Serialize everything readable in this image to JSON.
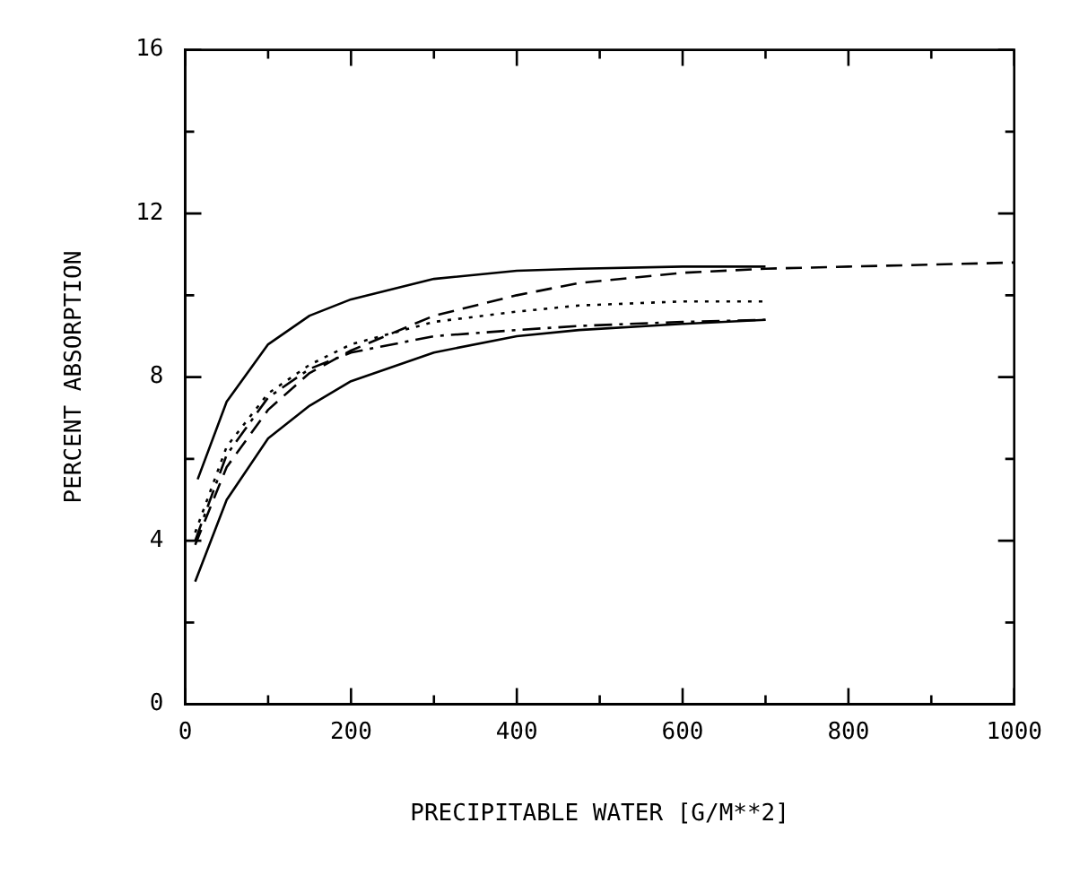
{
  "chart_data": {
    "type": "line",
    "xlabel": "PRECIPITABLE WATER [G/M**2]",
    "ylabel": "PERCENT ABSORPTION",
    "xlim": [
      0,
      1000
    ],
    "ylim": [
      0,
      16
    ],
    "xticks": [
      0,
      {
        "value": 100,
        "label": null
      },
      200,
      {
        "value": 300,
        "label": null
      },
      400,
      {
        "value": 500,
        "label": null
      },
      600,
      {
        "value": 700,
        "label": null
      },
      800,
      {
        "value": 900,
        "label": null
      },
      1000
    ],
    "yticks": [
      0,
      {
        "value": 2,
        "label": null
      },
      4,
      {
        "value": 6,
        "label": null
      },
      8,
      {
        "value": 10,
        "label": null
      },
      12,
      {
        "value": 14,
        "label": null
      },
      16
    ],
    "grid": false,
    "legend": false,
    "marker": "none",
    "series": [
      {
        "color": "#000000",
        "line_style": "solid",
        "x": [
          15,
          50,
          100,
          150,
          200,
          300,
          400,
          475,
          600,
          700
        ],
        "values": [
          5.5,
          7.4,
          8.8,
          9.5,
          9.9,
          10.4,
          10.6,
          10.65,
          10.7,
          10.7
        ]
      },
      {
        "color": "#000000",
        "line_style": "solid",
        "x": [
          12,
          50,
          100,
          150,
          200,
          300,
          400,
          475,
          600,
          700
        ],
        "values": [
          3.0,
          5.0,
          6.5,
          7.3,
          7.9,
          8.6,
          9.0,
          9.15,
          9.3,
          9.4
        ]
      },
      {
        "color": "#000000",
        "line_style": "dashed",
        "x": [
          12,
          50,
          100,
          150,
          200,
          300,
          400,
          475,
          600,
          700,
          800,
          1000
        ],
        "values": [
          3.9,
          5.8,
          7.2,
          8.1,
          8.65,
          9.5,
          10.0,
          10.3,
          10.55,
          10.65,
          10.7,
          10.8
        ]
      },
      {
        "color": "#000000",
        "line_style": "dotted",
        "x": [
          12,
          50,
          100,
          150,
          200,
          300,
          400,
          475,
          600,
          700
        ],
        "values": [
          4.2,
          6.3,
          7.6,
          8.3,
          8.8,
          9.35,
          9.6,
          9.75,
          9.85,
          9.85
        ]
      },
      {
        "color": "#000000",
        "line_style": "dashdot",
        "x": [
          12,
          50,
          100,
          150,
          200,
          300,
          400,
          475,
          600,
          700
        ],
        "values": [
          4.0,
          6.1,
          7.5,
          8.2,
          8.6,
          9.0,
          9.15,
          9.25,
          9.35,
          9.4
        ]
      }
    ]
  }
}
